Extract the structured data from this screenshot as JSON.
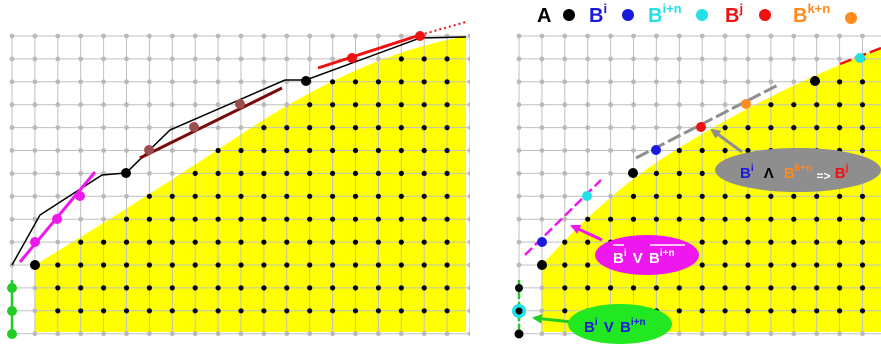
{
  "legend": [
    {
      "label": "A",
      "sup": "",
      "text_color": "#000000",
      "dot_color": "#000000"
    },
    {
      "label": "B",
      "sup": "i",
      "text_color": "#1a1adc",
      "dot_color": "#1a1adc"
    },
    {
      "label": "B",
      "sup": "i+n",
      "text_color": "#22e0e8",
      "dot_color": "#22e0e8"
    },
    {
      "label": "B",
      "sup": "j",
      "text_color": "#ee1111",
      "dot_color": "#ee1111"
    },
    {
      "label": "B",
      "sup": "k+n",
      "text_color": "#ff8a1e",
      "dot_color": "#ff8a1e"
    }
  ],
  "callouts": {
    "and_rule": {
      "b": "B",
      "bi_sup": "i",
      "and_symbol": "Λ",
      "bkn": "B",
      "bkn_sup": "k+n",
      "implies": "=>",
      "bj": "B",
      "bj_sup": "j",
      "fill": "#8e8e8e"
    },
    "neg_or": {
      "b1": "B",
      "b1_sup": "i",
      "or": "V",
      "b2": "B",
      "b2_sup": "i+n",
      "fill": "#ee17ee"
    },
    "or_rule": {
      "b1": "B",
      "b1_sup": "i",
      "or": "V",
      "b2": "B",
      "b2_sup": "i+n",
      "fill": "#22e822"
    }
  },
  "colors": {
    "region_fill": "#ffff00",
    "grid": "#c0c0c0",
    "dot_inside": "#000000",
    "dot_outside": "#b9b9b9",
    "magenta": "#ee17ee",
    "green": "#22cc22",
    "dark_red": "#7a0a0a",
    "brown_dot": "#9b4e4e",
    "red": "#ee1111",
    "blue": "#1a1adc",
    "cyan": "#22e0e8",
    "orange": "#ff8a1e",
    "gray": "#8e8e8e"
  }
}
